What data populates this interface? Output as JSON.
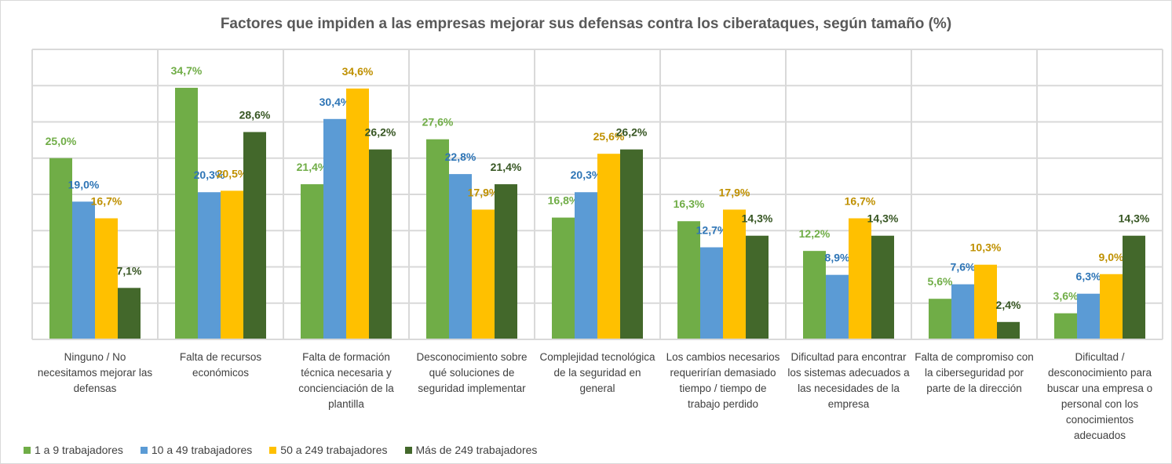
{
  "chart_data": {
    "type": "bar",
    "title": "Factores que impiden a las empresas mejorar sus defensas contra los ciberataques, según tamaño (%)",
    "categories": [
      "Ninguno / No necesitamos mejorar las defensas",
      "Falta de recursos económicos",
      "Falta de formación técnica necesaria y concienciación de la plantilla",
      "Desconocimiento sobre qué soluciones de seguridad implementar",
      "Complejidad tecnológica de la seguridad en general",
      "Los cambios necesarios requerirían demasiado tiempo / tiempo de trabajo perdido",
      "Dificultad para encontrar los sistemas adecuados a las necesidades de la empresa",
      "Falta de compromiso con la ciberseguridad por parte de la dirección",
      "Dificultad / desconocimiento para buscar una empresa o personal con los conocimientos adecuados"
    ],
    "series": [
      {
        "name": "1 a 9 trabajadores",
        "color": "#70AD47",
        "label_color": "#70AD47",
        "values": [
          25.0,
          34.7,
          21.4,
          27.6,
          16.8,
          16.3,
          12.2,
          5.6,
          3.6
        ]
      },
      {
        "name": "10 a 49 trabajadores",
        "color": "#5B9BD5",
        "label_color": "#2E75B6",
        "values": [
          19.0,
          20.3,
          30.4,
          22.8,
          20.3,
          12.7,
          8.9,
          7.6,
          6.3
        ]
      },
      {
        "name": "50 a 249 trabajadores",
        "color": "#FFC000",
        "label_color": "#BF9000",
        "values": [
          16.7,
          20.5,
          34.6,
          17.9,
          25.6,
          17.9,
          16.7,
          10.3,
          9.0
        ]
      },
      {
        "name": "Más de 249 trabajadores",
        "color": "#43682B",
        "label_color": "#375623",
        "values": [
          7.1,
          28.6,
          26.2,
          21.4,
          26.2,
          14.3,
          14.3,
          2.4,
          14.3
        ]
      }
    ],
    "ylim": [
      0,
      40
    ],
    "y_tick_step": 5,
    "y_tick_labels_shown": false,
    "grid": true,
    "legend": "bottom-left",
    "xlabel": "",
    "ylabel": ""
  }
}
